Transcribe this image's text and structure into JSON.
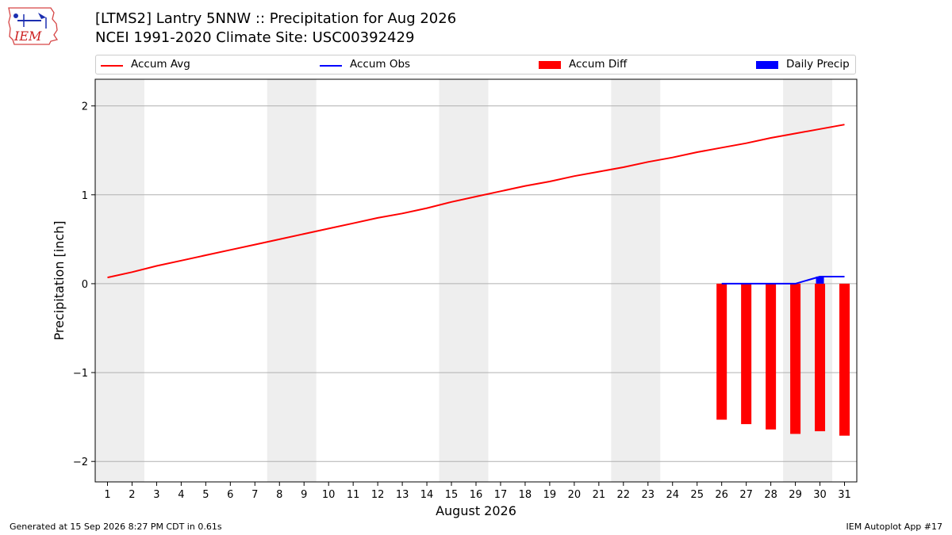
{
  "header": {
    "logo_text": "IEM",
    "title_line1": "[LTMS2] Lantry 5NNW :: Precipitation for Aug 2026",
    "title_line2": "NCEI 1991-2020 Climate Site: USC00392429"
  },
  "footer": {
    "generated": "Generated at 15 Sep 2026 8:27 PM CDT in 0.61s",
    "app": "IEM Autoplot App #17"
  },
  "chart_data": {
    "type": "line",
    "xlabel": "August 2026",
    "ylabel": "Precipitation [inch]",
    "xlim": [
      0.5,
      31.5
    ],
    "ylim": [
      -2.23,
      2.3
    ],
    "yticks": [
      2,
      1,
      0,
      -1,
      -2
    ],
    "ytick_labels": [
      "2",
      "1",
      "0",
      "−1",
      "−2"
    ],
    "x": [
      1,
      2,
      3,
      4,
      5,
      6,
      7,
      8,
      9,
      10,
      11,
      12,
      13,
      14,
      15,
      16,
      17,
      18,
      19,
      20,
      21,
      22,
      23,
      24,
      25,
      26,
      27,
      28,
      29,
      30,
      31
    ],
    "weekend_bands": [
      [
        1,
        2
      ],
      [
        8,
        9
      ],
      [
        15,
        16
      ],
      [
        22,
        23
      ],
      [
        29,
        30
      ]
    ],
    "grid": true,
    "legend_placement": "top",
    "colors": {
      "avg": "#ff0000",
      "obs": "#0000ff",
      "diff": "#ff0000",
      "daily": "#0000ff",
      "band": "#eeeeee"
    },
    "legend": [
      {
        "label": "Accum Avg",
        "style": "line",
        "color": "#ff0000"
      },
      {
        "label": "Accum Obs",
        "style": "line",
        "color": "#0000ff"
      },
      {
        "label": "Accum Diff",
        "style": "box",
        "color": "#ff0000"
      },
      {
        "label": "Daily Precip",
        "style": "box",
        "color": "#0000ff"
      }
    ],
    "series": [
      {
        "name": "Accum Avg",
        "kind": "line",
        "x": [
          1,
          2,
          3,
          4,
          5,
          6,
          7,
          8,
          9,
          10,
          11,
          12,
          13,
          14,
          15,
          16,
          17,
          18,
          19,
          20,
          21,
          22,
          23,
          24,
          25,
          26,
          27,
          28,
          29,
          30,
          31
        ],
        "values": [
          0.07,
          0.13,
          0.2,
          0.26,
          0.32,
          0.38,
          0.44,
          0.5,
          0.56,
          0.62,
          0.68,
          0.74,
          0.79,
          0.85,
          0.92,
          0.98,
          1.04,
          1.1,
          1.15,
          1.21,
          1.26,
          1.31,
          1.37,
          1.42,
          1.48,
          1.53,
          1.58,
          1.64,
          1.69,
          1.74,
          1.79
        ]
      },
      {
        "name": "Accum Obs",
        "kind": "line",
        "x": [
          26,
          27,
          28,
          29,
          30,
          31
        ],
        "values": [
          0.0,
          0.0,
          0.0,
          0.0,
          0.08,
          0.08
        ]
      },
      {
        "name": "Accum Diff",
        "kind": "bar",
        "x": [
          26,
          27,
          28,
          29,
          30,
          31
        ],
        "values": [
          -1.53,
          -1.58,
          -1.64,
          -1.69,
          -1.66,
          -1.71
        ]
      },
      {
        "name": "Daily Precip",
        "kind": "bar",
        "x": [
          30
        ],
        "values": [
          0.08
        ]
      }
    ]
  }
}
